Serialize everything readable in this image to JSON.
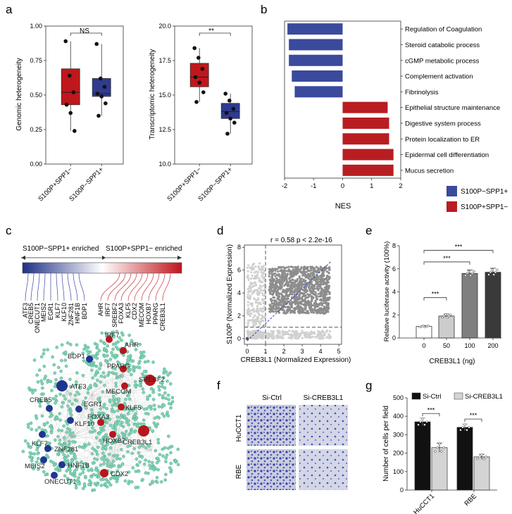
{
  "panels": {
    "a": {
      "letter": "a",
      "left": {
        "ylabel": "Genomic heterogeneity",
        "ticks": [
          "0.00",
          "0.25",
          "0.50",
          "0.75",
          "1.00"
        ],
        "tick_values": [
          0,
          0.25,
          0.5,
          0.75,
          1.0
        ],
        "categories": [
          "S100P+SPP1−",
          "S100P−SPP1+"
        ],
        "sig": "NS",
        "boxes": [
          {
            "q1": 0.43,
            "median": 0.52,
            "q3": 0.69,
            "whisker_low": 0.24,
            "whisker_high": 0.89,
            "color": "#c0171c",
            "points": [
              0.89,
              0.64,
              0.52,
              0.43,
              0.37,
              0.24
            ]
          },
          {
            "q1": 0.49,
            "median": 0.51,
            "q3": 0.62,
            "whisker_low": 0.35,
            "whisker_high": 0.87,
            "color": "#2e3b8f",
            "points": [
              0.87,
              0.62,
              0.56,
              0.51,
              0.49,
              0.44,
              0.35
            ]
          }
        ]
      },
      "right": {
        "ylabel": "Transcriptomic heterogeneity",
        "ticks": [
          "10.0",
          "12.5",
          "15.0",
          "17.5",
          "20.0"
        ],
        "tick_values": [
          10,
          12.5,
          15,
          17.5,
          20
        ],
        "categories": [
          "S100P+SPP1−",
          "S100P−SPP1+"
        ],
        "sig": "**",
        "boxes": [
          {
            "q1": 15.6,
            "median": 16.3,
            "q3": 17.3,
            "whisker_low": 14.5,
            "whisker_high": 18.4,
            "color": "#c0171c",
            "points": [
              18.4,
              17.7,
              16.9,
              16.3,
              15.9,
              15.2,
              14.5
            ]
          },
          {
            "q1": 13.3,
            "median": 13.8,
            "q3": 14.4,
            "whisker_low": 12.2,
            "whisker_high": 15.1,
            "color": "#2e3b8f",
            "points": [
              15.1,
              14.6,
              14.0,
              13.7,
              13.3,
              13.0,
              12.2
            ]
          }
        ]
      }
    },
    "b": {
      "letter": "b",
      "xlabel": "NES",
      "xticks": [
        "-2",
        "-1",
        "0",
        "1",
        "2"
      ],
      "xtick_values": [
        -2,
        -1,
        0,
        1,
        2
      ],
      "bars": [
        {
          "label": "Regulation of Coagulation",
          "value": -1.9,
          "group": "blue"
        },
        {
          "label": "Steroid catabolic process",
          "value": -1.85,
          "group": "blue"
        },
        {
          "label": "cGMP metabolic process",
          "value": -1.85,
          "group": "blue"
        },
        {
          "label": "Complement activation",
          "value": -1.75,
          "group": "blue"
        },
        {
          "label": "Fibrinolysis",
          "value": -1.65,
          "group": "blue"
        },
        {
          "label": "Epithelial structure maintenance",
          "value": 1.55,
          "group": "red"
        },
        {
          "label": "Digestive system process",
          "value": 1.6,
          "group": "red"
        },
        {
          "label": "Protein localization to ER",
          "value": 1.6,
          "group": "red"
        },
        {
          "label": "Epidermal cell differentiation",
          "value": 1.75,
          "group": "red"
        },
        {
          "label": "Mucus secretion",
          "value": 1.75,
          "group": "red"
        }
      ],
      "legend": [
        {
          "label": "S100P−SPP1+",
          "color": "#3a4a9c"
        },
        {
          "label": "S100P+SPP1−",
          "color": "#b81d21"
        }
      ]
    },
    "c": {
      "letter": "c",
      "left_header": "S100P−SPP1+ enriched",
      "right_header": "S100P+SPP1− enriched",
      "left_genes": [
        "ATF3",
        "CREB5",
        "ONECUT1",
        "MEIS2",
        "EGR1",
        "KLF7",
        "KLF10",
        "ZNF281",
        "HNF1B",
        "BDP1"
      ],
      "right_genes": [
        "AHR",
        "IRF7",
        "SREBF2",
        "FOXA3",
        "KLF5",
        "CDX2",
        "MECOM",
        "HOXB7",
        "PPARG",
        "CREB3L1"
      ],
      "network_nodes": [
        {
          "label": "BDP1",
          "group": "blue"
        },
        {
          "label": "ATF3",
          "group": "blue"
        },
        {
          "label": "CREB5",
          "group": "blue"
        },
        {
          "label": "EGR1",
          "group": "blue"
        },
        {
          "label": "KLF10",
          "group": "blue"
        },
        {
          "label": "KLF7",
          "group": "blue"
        },
        {
          "label": "ZNF281",
          "group": "blue"
        },
        {
          "label": "MEIS2",
          "group": "blue"
        },
        {
          "label": "HNF1B",
          "group": "blue"
        },
        {
          "label": "ONECUT1",
          "group": "blue"
        },
        {
          "label": "IRF7",
          "group": "red"
        },
        {
          "label": "AHR",
          "group": "red"
        },
        {
          "label": "PPARG",
          "group": "red"
        },
        {
          "label": "SREBF2",
          "group": "red"
        },
        {
          "label": "MECOM",
          "group": "red"
        },
        {
          "label": "KLF5",
          "group": "red"
        },
        {
          "label": "FOXA3",
          "group": "red"
        },
        {
          "label": "HOXB7",
          "group": "red"
        },
        {
          "label": "CREB3L1",
          "group": "red"
        },
        {
          "label": "CDX2",
          "group": "red"
        }
      ]
    },
    "d": {
      "letter": "d",
      "stats": "r = 0.58    p < 2.2e-16",
      "xlabel": "CREB3L1 (Normalized Expression)",
      "ylabel": "S100P (Normalized Expression)",
      "xticks": [
        "0",
        "1",
        "2",
        "3",
        "4",
        "5"
      ],
      "xtick_values": [
        0,
        1,
        2,
        3,
        4,
        5
      ],
      "yticks": [
        "0",
        "2",
        "4",
        "6",
        "8"
      ],
      "ytick_values": [
        0,
        2,
        4,
        6,
        8
      ],
      "threshold_x": 1,
      "threshold_y": 1
    },
    "e": {
      "letter": "e",
      "xlabel": "CREB3L1 (ng)",
      "ylabel": "Relative luciferase activity (100%)",
      "categories": [
        "0",
        "50",
        "100",
        "200"
      ],
      "values": [
        1.0,
        1.9,
        5.6,
        5.7
      ],
      "errors": [
        0.08,
        0.18,
        0.3,
        0.35
      ],
      "colors": [
        "#ffffff",
        "#cccccc",
        "#7f7f7f",
        "#3a3a3a"
      ],
      "yticks": [
        "0",
        "2",
        "4",
        "6",
        "8"
      ],
      "ytick_values": [
        0,
        2,
        4,
        6,
        8
      ],
      "sig": [
        "***",
        "***",
        "***"
      ]
    },
    "f": {
      "letter": "f",
      "col_labels": [
        "Si-Ctrl",
        "Si-CREB3L1"
      ],
      "row_labels": [
        "HuCCT1",
        "RBE"
      ]
    },
    "g": {
      "letter": "g",
      "ylabel": "Number of cells per field",
      "categories": [
        "HuCCT1",
        "RBE"
      ],
      "legend": [
        "Si-Ctrl",
        "Si-CREB3L1"
      ],
      "series": [
        {
          "name": "Si-Ctrl",
          "values": [
            370,
            340
          ],
          "errors": [
            20,
            18
          ],
          "color": "#111111"
        },
        {
          "name": "Si-CREB3L1",
          "values": [
            230,
            180
          ],
          "errors": [
            25,
            14
          ],
          "color": "#d4d4d4"
        }
      ],
      "yticks": [
        "0",
        "100",
        "200",
        "300",
        "400",
        "500"
      ],
      "ytick_values": [
        0,
        100,
        200,
        300,
        400,
        500
      ],
      "sig": [
        "***",
        "***"
      ]
    }
  },
  "chart_data": [
    {
      "type": "box",
      "title": "",
      "ylabel": "Genomic heterogeneity",
      "categories": [
        "S100P+SPP1−",
        "S100P−SPP1+"
      ],
      "series": [
        {
          "values": [
            0.89,
            0.64,
            0.52,
            0.43,
            0.37,
            0.24
          ]
        },
        {
          "values": [
            0.87,
            0.62,
            0.56,
            0.51,
            0.49,
            0.44,
            0.35
          ]
        }
      ],
      "ylim": [
        0,
        1
      ],
      "annotation": "NS"
    },
    {
      "type": "box",
      "title": "",
      "ylabel": "Transcriptomic heterogeneity",
      "categories": [
        "S100P+SPP1−",
        "S100P−SPP1+"
      ],
      "series": [
        {
          "values": [
            18.4,
            17.7,
            16.9,
            16.3,
            15.9,
            15.2,
            14.5
          ]
        },
        {
          "values": [
            15.1,
            14.6,
            14.0,
            13.7,
            13.3,
            13.0,
            12.2
          ]
        }
      ],
      "ylim": [
        10,
        20
      ],
      "annotation": "**"
    },
    {
      "type": "bar",
      "title": "",
      "xlabel": "NES",
      "categories": [
        "Regulation of Coagulation",
        "Steroid catabolic process",
        "cGMP metabolic process",
        "Complement activation",
        "Fibrinolysis",
        "Epithelial structure maintenance",
        "Digestive system process",
        "Protein localization to ER",
        "Epidermal cell differentiation",
        "Mucus secretion"
      ],
      "values": [
        -1.9,
        -1.85,
        -1.85,
        -1.75,
        -1.65,
        1.55,
        1.6,
        1.6,
        1.75,
        1.75
      ],
      "xlim": [
        -2,
        2
      ]
    },
    {
      "type": "scatter",
      "title": "",
      "xlabel": "CREB3L1 (Normalized Expression)",
      "ylabel": "S100P (Normalized Expression)",
      "xlim": [
        0,
        5
      ],
      "ylim": [
        0,
        8
      ],
      "annotation": "r = 0.58    p < 2.2e-16"
    },
    {
      "type": "bar",
      "title": "",
      "xlabel": "CREB3L1 (ng)",
      "ylabel": "Relative luciferase activity (100%)",
      "categories": [
        "0",
        "50",
        "100",
        "200"
      ],
      "values": [
        1.0,
        1.9,
        5.6,
        5.7
      ],
      "ylim": [
        0,
        8
      ]
    },
    {
      "type": "bar",
      "title": "",
      "ylabel": "Number of cells per field",
      "categories": [
        "HuCCT1",
        "RBE"
      ],
      "series": [
        {
          "name": "Si-Ctrl",
          "values": [
            370,
            340
          ]
        },
        {
          "name": "Si-CREB3L1",
          "values": [
            230,
            180
          ]
        }
      ],
      "ylim": [
        0,
        500
      ]
    }
  ]
}
